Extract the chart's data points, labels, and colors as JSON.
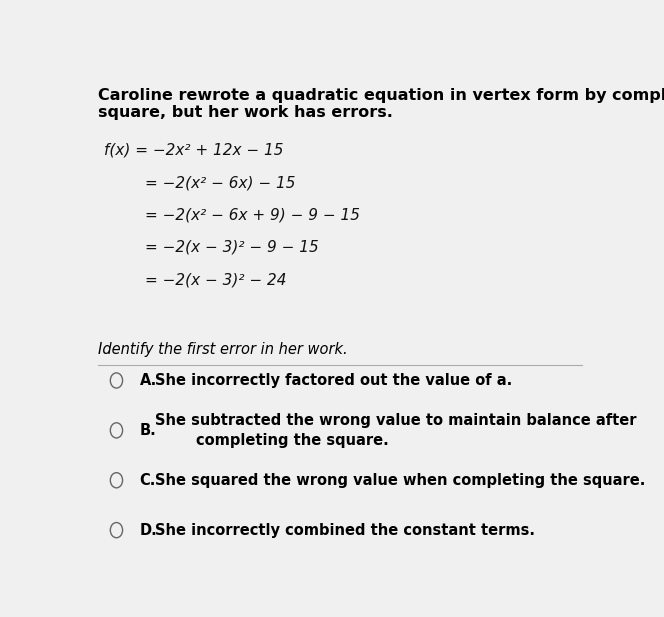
{
  "background_color": "#f0f0f0",
  "title_text1": "Caroline rewrote a quadratic equation in vertex form by completing the",
  "title_text2": "square, but her work has errors.",
  "math_lines": [
    {
      "text": "f(x) = −2x² + 12x − 15",
      "indent": 0.04,
      "italic_prefix": "f(x)"
    },
    {
      "text": "= −2(x² − 6x) − 15",
      "indent": 0.12,
      "italic_prefix": ""
    },
    {
      "text": "= −2(x² − 6x + 9) − 9 − 15",
      "indent": 0.12,
      "italic_prefix": ""
    },
    {
      "text": "= −2(x − 3)² − 9 − 15",
      "indent": 0.12,
      "italic_prefix": ""
    },
    {
      "text": "= −2(x − 3)² − 24",
      "indent": 0.12,
      "italic_prefix": ""
    }
  ],
  "prompt_text": "Identify the first error in her work.",
  "choices": [
    {
      "label": "A.",
      "text": "She incorrectly factored out the value of a."
    },
    {
      "label": "B.",
      "text": "She subtracted the wrong value to maintain balance after\n        completing the square."
    },
    {
      "label": "C.",
      "text": "She squared the wrong value when completing the square."
    },
    {
      "label": "D.",
      "text": "She incorrectly combined the constant terms."
    }
  ],
  "font_size_title": 11.5,
  "font_size_math": 11.0,
  "font_size_prompt": 10.5,
  "font_size_choices": 10.5,
  "line_color": "#aaaaaa"
}
